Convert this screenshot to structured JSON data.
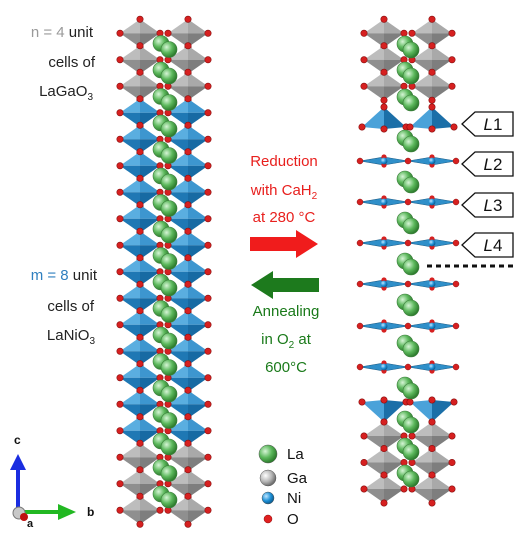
{
  "left_labels": {
    "n_block": {
      "prefix": "n = ",
      "value": "4",
      "suffix": " unit",
      "line2": "cells of",
      "formula_main": "LaGaO",
      "formula_sub": "3"
    },
    "m_block": {
      "prefix": "m = ",
      "value": "8",
      "suffix": " unit",
      "line2": "cells of",
      "formula_main": "LaNiO",
      "formula_sub": "3"
    }
  },
  "reduction": {
    "line1": "Reduction",
    "line2_main": "with CaH",
    "line2_sub": "2",
    "line3": "at 280 °C"
  },
  "annealing": {
    "line1": "Annealing",
    "line2_main": "in O",
    "line2_sub": "2",
    "line2_rest": " at",
    "line3": "600°C"
  },
  "layer_tags": [
    {
      "letter": "L",
      "num": "1"
    },
    {
      "letter": "L",
      "num": "2"
    },
    {
      "letter": "L",
      "num": "3"
    },
    {
      "letter": "L",
      "num": "4"
    }
  ],
  "legend": [
    {
      "label": "La",
      "color": "#5cb85c"
    },
    {
      "label": "Ga",
      "color": "#a9a9a9"
    },
    {
      "label": "Ni",
      "color": "#1e90d6"
    },
    {
      "label": "O",
      "color": "#e03030"
    }
  ],
  "axes": {
    "c": "c",
    "b": "b",
    "a": "a"
  },
  "colors": {
    "ga_octahedron": "#9b9b9b",
    "ni_octahedron": "#2f8fc9",
    "n_label": "#9a9a9a",
    "m_label": "#2f7fbf",
    "reduction": "#e8201e",
    "annealing": "#1a7a1a"
  }
}
